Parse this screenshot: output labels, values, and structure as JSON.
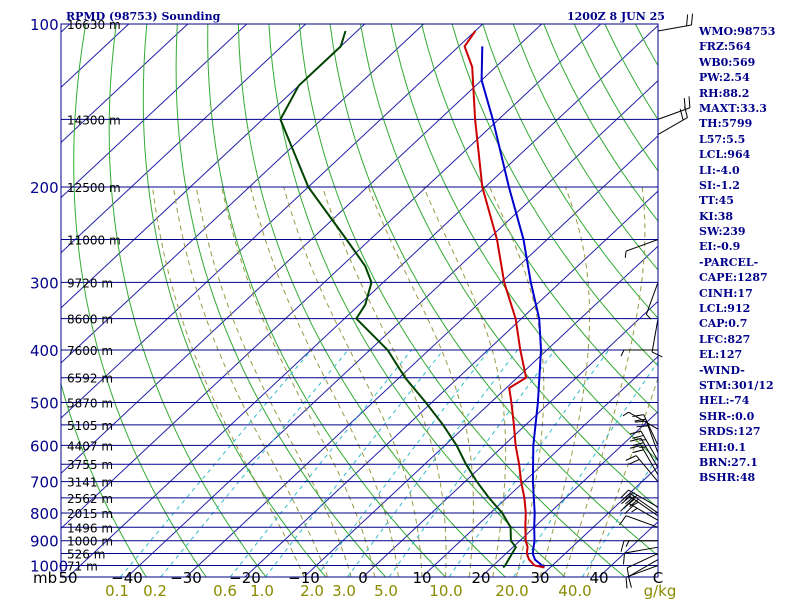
{
  "header": {
    "station": "RPMD (98753) Sounding",
    "time": "1200Z  8 JUN 25"
  },
  "indices": [
    "WMO:98753",
    "FRZ:564",
    "WB0:569",
    "PW:2.54",
    "RH:88.2",
    "MAXT:33.3",
    "TH:5799",
    "L57:5.5",
    "LCL:964",
    "LI:-4.0",
    "SI:-1.2",
    "TT:45",
    "KI:38",
    "SW:239",
    "EI:-0.9",
    "-PARCEL-",
    "CAPE:1287",
    "CINH:17",
    "LCL:912",
    "CAP:0.7",
    "LFC:827",
    "EL:127",
    "-WIND-",
    "STM:301/12",
    "HEL:-74",
    "SHR-:0.0",
    "SRDS:127",
    "EHI:0.1",
    "BRN:27.1",
    "BSHR:48"
  ],
  "colors": {
    "frame": "#00008b",
    "isobar": "#00008b",
    "isotherm": "#2222aa",
    "dry_adiabat": "#33aa33",
    "moist_adiabat": "#999944",
    "mixing_ratio": "#33bbcc",
    "temperature": "#cc0000",
    "dewpoint": "#004400",
    "parcel": "#0000cc",
    "wind": "#000000"
  },
  "chart_data": {
    "type": "skew-t",
    "title": "RPMD (98753) Sounding",
    "valid": "1200Z  8 JUN 25",
    "pressure_range_mb": [
      1050,
      100
    ],
    "temperature_range_c": [
      -50,
      0
    ],
    "pressure_labels": [
      100,
      200,
      300,
      400,
      500,
      600,
      700,
      800,
      900,
      1000
    ],
    "height_labels": [
      {
        "p": 100,
        "text": "16630 m"
      },
      {
        "p": 150,
        "text": "14300 m"
      },
      {
        "p": 200,
        "text": "12500 m"
      },
      {
        "p": 250,
        "text": "11000 m"
      },
      {
        "p": 300,
        "text": "9720 m"
      },
      {
        "p": 350,
        "text": "8600 m"
      },
      {
        "p": 400,
        "text": "7600 m"
      },
      {
        "p": 450,
        "text": "6592 m"
      },
      {
        "p": 500,
        "text": "5870 m"
      },
      {
        "p": 550,
        "text": "5105 m"
      },
      {
        "p": 600,
        "text": "4407 m"
      },
      {
        "p": 650,
        "text": "3755 m"
      },
      {
        "p": 700,
        "text": "3141 m"
      },
      {
        "p": 750,
        "text": "2562 m"
      },
      {
        "p": 800,
        "text": "2015 m"
      },
      {
        "p": 850,
        "text": "1496 m"
      },
      {
        "p": 900,
        "text": "1000 m"
      },
      {
        "p": 950,
        "text": "526 m"
      },
      {
        "p": 1000,
        "text": "71 m"
      }
    ],
    "temperature_tick_labels": [
      "50",
      "−40",
      "−30",
      "−20",
      "−10",
      "0",
      "10",
      "20",
      "30",
      "40",
      "C"
    ],
    "pressure_unit_label": "mb",
    "mixing_ratio_labels": [
      "0.1",
      "0.2",
      "0.6",
      "1.0",
      "2.0",
      "3.0",
      "5.0",
      "10.0",
      "20.0",
      "40.0"
    ],
    "mixing_ratio_unit": "g/kg",
    "temperature_profile": [
      [
        1008,
        29
      ],
      [
        1000,
        27
      ],
      [
        975,
        25
      ],
      [
        950,
        23.5
      ],
      [
        925,
        22.5
      ],
      [
        900,
        21
      ],
      [
        850,
        18.5
      ],
      [
        800,
        16
      ],
      [
        750,
        13
      ],
      [
        700,
        9.5
      ],
      [
        650,
        6
      ],
      [
        600,
        2
      ],
      [
        550,
        -2
      ],
      [
        500,
        -6.5
      ],
      [
        470,
        -9.5
      ],
      [
        450,
        -8.5
      ],
      [
        400,
        -14.5
      ],
      [
        350,
        -21
      ],
      [
        300,
        -29.5
      ],
      [
        250,
        -38.5
      ],
      [
        200,
        -50.5
      ],
      [
        150,
        -64
      ],
      [
        120,
        -74
      ],
      [
        110,
        -79
      ],
      [
        103,
        -80
      ]
    ],
    "dewpoint_profile": [
      [
        1008,
        22
      ],
      [
        1000,
        22
      ],
      [
        975,
        21.5
      ],
      [
        950,
        21
      ],
      [
        925,
        20.5
      ],
      [
        900,
        18.5
      ],
      [
        850,
        16
      ],
      [
        800,
        12
      ],
      [
        750,
        7
      ],
      [
        700,
        2
      ],
      [
        650,
        -3
      ],
      [
        600,
        -8
      ],
      [
        550,
        -14
      ],
      [
        500,
        -21
      ],
      [
        450,
        -29
      ],
      [
        400,
        -37
      ],
      [
        350,
        -48
      ],
      [
        330,
        -49
      ],
      [
        300,
        -52
      ],
      [
        280,
        -56
      ],
      [
        250,
        -64
      ],
      [
        200,
        -80
      ],
      [
        150,
        -97
      ],
      [
        130,
        -100
      ],
      [
        110,
        -100
      ],
      [
        103,
        -102
      ]
    ],
    "parcel_profile": [
      [
        1008,
        29
      ],
      [
        975,
        26
      ],
      [
        950,
        24.5
      ],
      [
        900,
        22.5
      ],
      [
        850,
        20
      ],
      [
        800,
        17.5
      ],
      [
        700,
        11.5
      ],
      [
        600,
        5
      ],
      [
        500,
        -2
      ],
      [
        400,
        -11
      ],
      [
        350,
        -17
      ],
      [
        300,
        -25
      ],
      [
        250,
        -34
      ],
      [
        200,
        -46
      ],
      [
        150,
        -61
      ],
      [
        127,
        -70
      ],
      [
        110,
        -76
      ]
    ],
    "wind_barbs": [
      {
        "p": 1000,
        "dir": 250,
        "kt": 10
      },
      {
        "p": 975,
        "dir": 240,
        "kt": 10
      },
      {
        "p": 950,
        "dir": 245,
        "kt": 10
      },
      {
        "p": 925,
        "dir": 260,
        "kt": 10
      },
      {
        "p": 900,
        "dir": 270,
        "kt": 15
      },
      {
        "p": 850,
        "dir": 290,
        "kt": 10
      },
      {
        "p": 825,
        "dir": 300,
        "kt": 25
      },
      {
        "p": 810,
        "dir": 305,
        "kt": 25
      },
      {
        "p": 800,
        "dir": 305,
        "kt": 30
      },
      {
        "p": 780,
        "dir": 300,
        "kt": 30
      },
      {
        "p": 700,
        "dir": 320,
        "kt": 20
      },
      {
        "p": 680,
        "dir": 330,
        "kt": 20
      },
      {
        "p": 660,
        "dir": 330,
        "kt": 25
      },
      {
        "p": 640,
        "dir": 330,
        "kt": 25
      },
      {
        "p": 620,
        "dir": 340,
        "kt": 20
      },
      {
        "p": 600,
        "dir": 335,
        "kt": 20
      },
      {
        "p": 560,
        "dir": 300,
        "kt": 5
      },
      {
        "p": 400,
        "dir": 270,
        "kt": 5
      },
      {
        "p": 350,
        "dir": 190,
        "kt": 10
      },
      {
        "p": 300,
        "dir": 200,
        "kt": 5
      },
      {
        "p": 250,
        "dir": 250,
        "kt": 5
      },
      {
        "p": 160,
        "dir": 60,
        "kt": 20
      },
      {
        "p": 150,
        "dir": 70,
        "kt": 20
      },
      {
        "p": 103,
        "dir": 80,
        "kt": 20
      }
    ]
  }
}
